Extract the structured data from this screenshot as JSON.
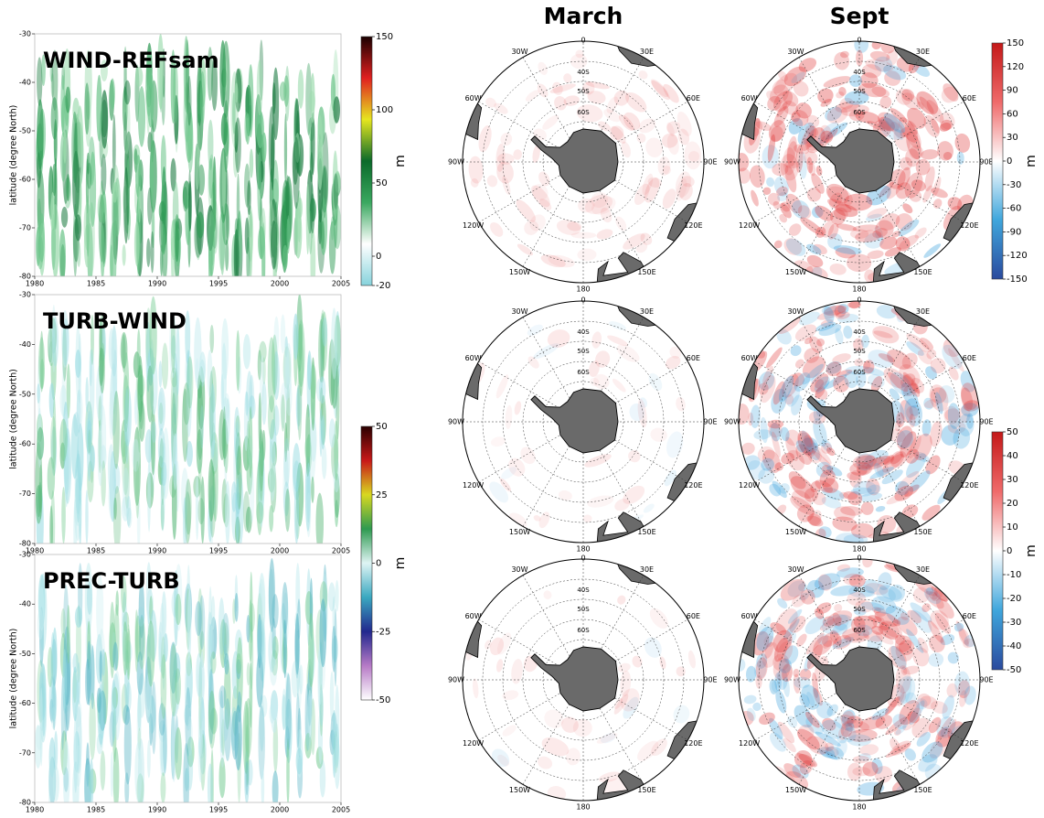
{
  "chart_data": [
    {
      "type": "hovmoller",
      "title": "WIND-REFsam",
      "ylabel": "latitude (degree North)",
      "xlim": [
        1980,
        2005
      ],
      "xticks": [
        1980,
        1985,
        1990,
        1995,
        2000,
        2005
      ],
      "ylim": [
        -80,
        -30
      ],
      "yticks": [
        -30,
        -40,
        -50,
        -60,
        -70,
        -80
      ],
      "colorbar": {
        "label": "m",
        "lim": [
          -20,
          150
        ],
        "ticks": [
          150,
          100,
          50,
          0,
          -20
        ],
        "colors": [
          "#86d3dc",
          "#ffffff",
          "#3aa860",
          "#0b6a2a",
          "#e6e620",
          "#e02020",
          "#1a0000"
        ]
      }
    },
    {
      "type": "hovmoller",
      "title": "TURB-WIND",
      "ylabel": "latitude (degree North)",
      "xlim": [
        1980,
        2005
      ],
      "xticks": [
        1980,
        1985,
        1990,
        1995,
        2000,
        2005
      ],
      "ylim": [
        -80,
        -30
      ],
      "yticks": [
        -30,
        -40,
        -50,
        -60,
        -70,
        -80
      ],
      "colorbar": {
        "label": "m",
        "lim": [
          -50,
          50
        ],
        "ticks": [
          50,
          25,
          0,
          -25,
          -50
        ],
        "colors": [
          "#ffffff",
          "#b67ac6",
          "#22288e",
          "#3aa8c0",
          "#dff4f4",
          "#2e9a50",
          "#d8d820",
          "#c81818",
          "#2a0000"
        ]
      }
    },
    {
      "type": "hovmoller",
      "title": "PREC-TURB",
      "ylabel": "latitude (degree North)",
      "xlim": [
        1980,
        2005
      ],
      "xticks": [
        1980,
        1985,
        1990,
        1995,
        2000,
        2005
      ],
      "ylim": [
        -80,
        -30
      ],
      "yticks": [
        -30,
        -40,
        -50,
        -60,
        -70,
        -80
      ]
    },
    {
      "type": "polar-map",
      "columns": [
        "March",
        "Sept"
      ],
      "lon_labels": [
        "0",
        "30E",
        "60E",
        "90E",
        "120E",
        "150E",
        "180",
        "150W",
        "120W",
        "90W",
        "60W",
        "30W"
      ],
      "lat_labels": [
        "40S",
        "50S",
        "60S"
      ],
      "colorbars": [
        {
          "label": "m",
          "lim": [
            -150,
            150
          ],
          "ticks": [
            150,
            120,
            90,
            60,
            30,
            0,
            -30,
            -60,
            -90,
            -120,
            -150
          ],
          "colors": [
            "#2a4a9e",
            "#3fa6dc",
            "#ffffff",
            "#ef6a6a",
            "#c41818"
          ]
        },
        {
          "label": "m",
          "lim": [
            -50,
            50
          ],
          "ticks": [
            50,
            40,
            30,
            20,
            10,
            0,
            -10,
            -20,
            -30,
            -40,
            -50
          ],
          "colors": [
            "#2a4a9e",
            "#3fa6dc",
            "#ffffff",
            "#ef6a6a",
            "#c41818"
          ]
        }
      ]
    }
  ]
}
